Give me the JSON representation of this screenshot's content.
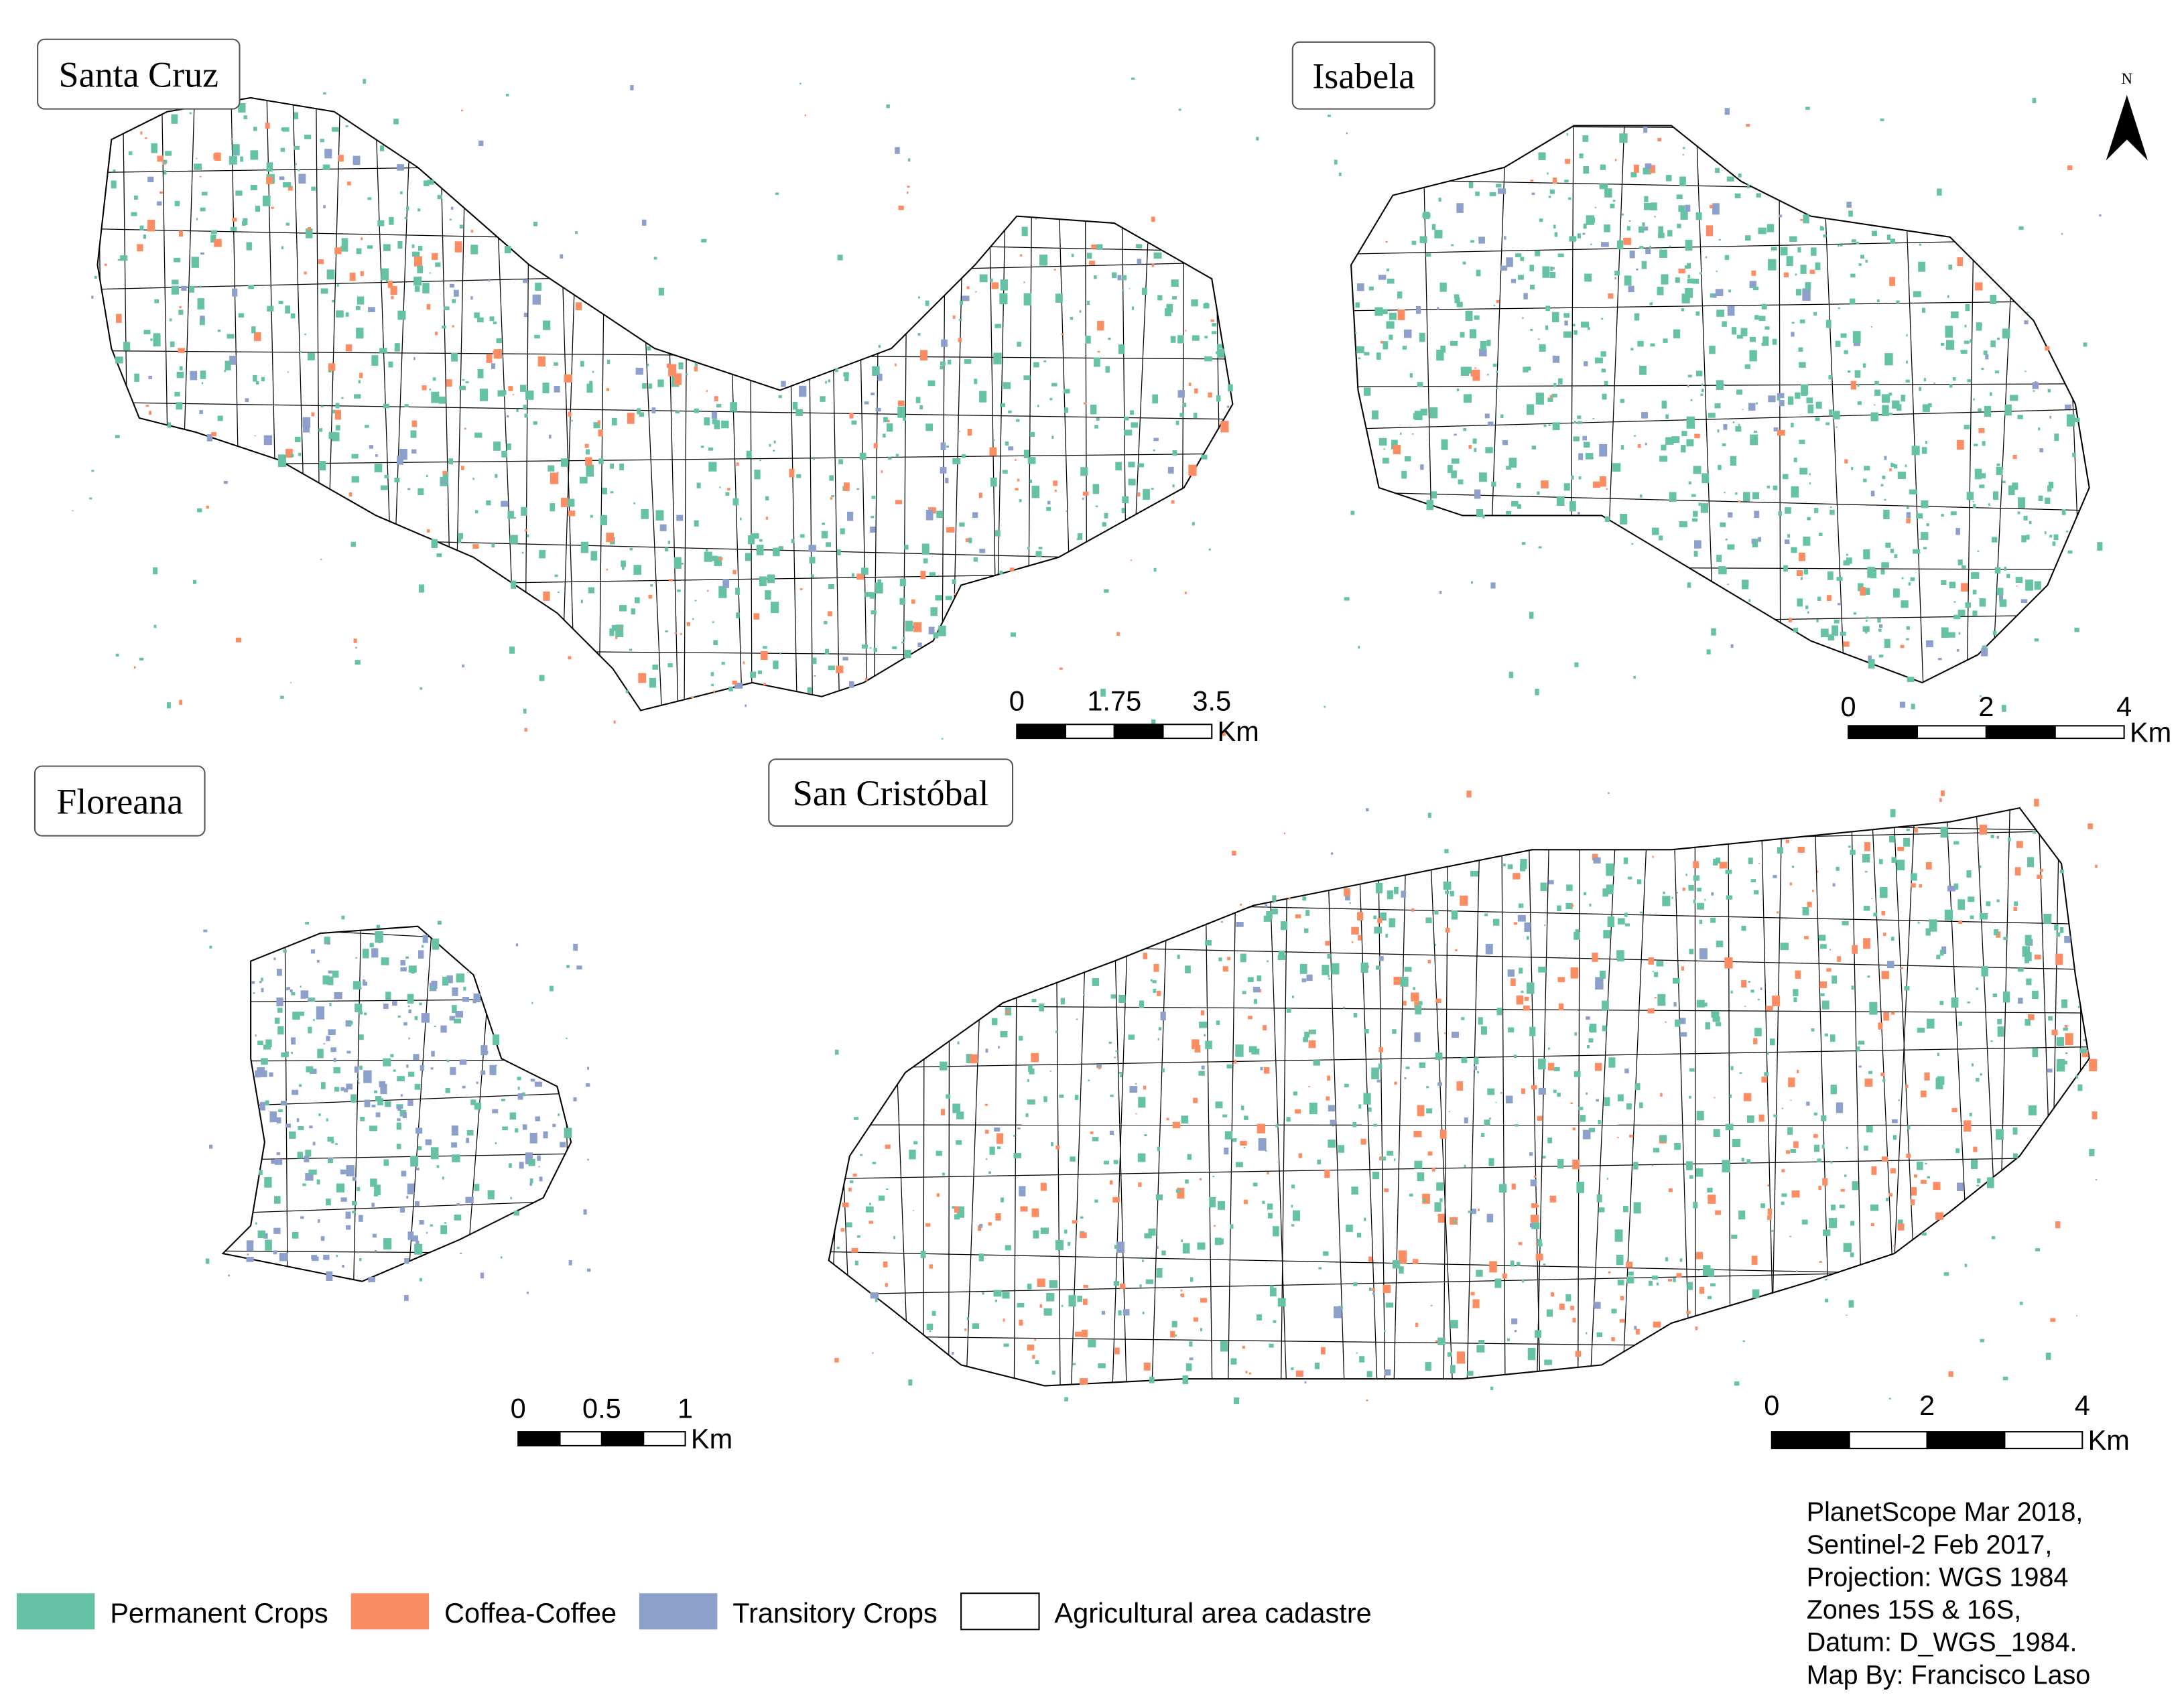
{
  "panels": [
    {
      "name": "Santa Cruz",
      "scale_bar": {
        "ticks": [
          "0",
          "1.75",
          "3.5"
        ],
        "unit": "Km"
      }
    },
    {
      "name": "Isabela",
      "scale_bar": {
        "ticks": [
          "0",
          "2",
          "4"
        ],
        "unit": "Km"
      }
    },
    {
      "name": "Floreana",
      "scale_bar": {
        "ticks": [
          "0",
          "0.5",
          "1"
        ],
        "unit": "Km"
      }
    },
    {
      "name": "San Cristóbal",
      "scale_bar": {
        "ticks": [
          "0",
          "2",
          "4"
        ],
        "unit": "Km"
      }
    }
  ],
  "north_arrow": "N",
  "legend": [
    {
      "label": "Permanent Crops",
      "color": "#66c2a5"
    },
    {
      "label": "Coffea-Coffee",
      "color": "#fc8d62"
    },
    {
      "label": "Transitory Crops",
      "color": "#8da0cb"
    },
    {
      "label": "Agricultural area cadastre",
      "color": "#ffffff"
    }
  ],
  "credits": [
    "PlanetScope Mar 2018,",
    "Sentinel-2 Feb 2017,",
    "Projection: WGS 1984",
    "Zones 15S & 16S,",
    "Datum: D_WGS_1984.",
    "Map By: Francisco Laso"
  ]
}
